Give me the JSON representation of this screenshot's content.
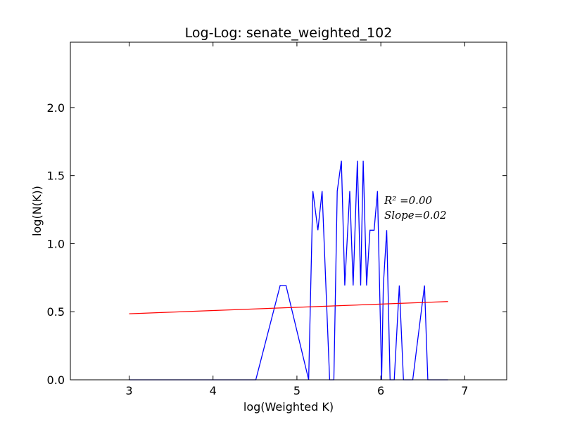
{
  "chart_data": {
    "type": "line",
    "title": "Log-Log: senate_weighted_102",
    "xlabel": "log(Weighted K)",
    "ylabel": "log(N(K))",
    "xlim": [
      2.3,
      7.5
    ],
    "ylim": [
      0.0,
      2.48
    ],
    "xticks": [
      3,
      4,
      5,
      6,
      7
    ],
    "xtick_labels": [
      "3",
      "4",
      "5",
      "6",
      "7"
    ],
    "yticks": [
      0.0,
      0.5,
      1.0,
      1.5,
      2.0
    ],
    "ytick_labels": [
      "0.0",
      "0.5",
      "1.0",
      "1.5",
      "2.0"
    ],
    "grid": false,
    "series": [
      {
        "color": "#0000ff",
        "x": [
          3.0,
          4.51,
          4.8,
          4.87,
          5.14,
          5.19,
          5.25,
          5.3,
          5.39,
          5.44,
          5.48,
          5.53,
          5.57,
          5.63,
          5.67,
          5.72,
          5.76,
          5.79,
          5.83,
          5.87,
          5.92,
          5.96,
          6.01,
          6.03,
          6.07,
          6.11,
          6.16,
          6.22,
          6.27,
          6.33,
          6.38,
          6.52,
          6.56,
          6.8
        ],
        "y": [
          0.0,
          0.0,
          0.693,
          0.693,
          0.0,
          1.386,
          1.099,
          1.386,
          0.0,
          0.0,
          1.386,
          1.609,
          0.693,
          1.386,
          0.693,
          1.609,
          0.693,
          1.609,
          0.693,
          1.099,
          1.099,
          1.386,
          0.0,
          0.693,
          1.099,
          0.0,
          0.0,
          0.693,
          0.0,
          0.0,
          0.0,
          0.693,
          0.0,
          0.0
        ]
      },
      {
        "color": "#ff0000",
        "x": [
          3.0,
          6.8
        ],
        "y": [
          0.485,
          0.575
        ]
      }
    ],
    "annotations": {
      "r2_label": "R² =0.00",
      "slope_label": "Slope=0.02"
    }
  }
}
